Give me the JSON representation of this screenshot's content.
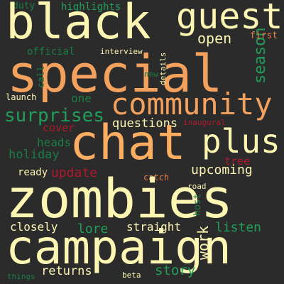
{
  "colors": {
    "background": "#2b2b2b",
    "cream": "#fdf6b3",
    "peach": "#fdae61",
    "orange": "#f4a15d",
    "green": "#1f9e5a",
    "dark_green": "#1a7d45",
    "red": "#b2182b"
  },
  "words": [
    {
      "id": "duty",
      "text": "duty",
      "color": "#1a7d45"
    },
    {
      "id": "highlights",
      "text": "highlights",
      "color": "#1f9e5a"
    },
    {
      "id": "black",
      "text": "black",
      "color": "#fdf6b3"
    },
    {
      "id": "guest",
      "text": "guest",
      "color": "#fdf6b3"
    },
    {
      "id": "season",
      "text": "season",
      "color": "#1f9e5a"
    },
    {
      "id": "first",
      "text": "first",
      "color": "#e8804a"
    },
    {
      "id": "open",
      "text": "open",
      "color": "#fdf6b3"
    },
    {
      "id": "official",
      "text": "official",
      "color": "#1a7d45"
    },
    {
      "id": "interview",
      "text": "interview",
      "color": "#fdf6b3"
    },
    {
      "id": "special",
      "text": "special",
      "color": "#f4a15d"
    },
    {
      "id": "call",
      "text": "call",
      "color": "#1a7d45"
    },
    {
      "id": "new",
      "text": "new",
      "color": "#1a7d45"
    },
    {
      "id": "details",
      "text": "details",
      "color": "#fdf6b3"
    },
    {
      "id": "launch",
      "text": "launch",
      "color": "#fdf6b3"
    },
    {
      "id": "one",
      "text": "one",
      "color": "#1a7d45"
    },
    {
      "id": "community",
      "text": "community",
      "color": "#f4a15d"
    },
    {
      "id": "surprises",
      "text": "surprises",
      "color": "#1f9e5a"
    },
    {
      "id": "questions",
      "text": "questions",
      "color": "#fdf6b3"
    },
    {
      "id": "inaugural",
      "text": "inaugural",
      "color": "#b2182b"
    },
    {
      "id": "cover",
      "text": "cover",
      "color": "#b2182b"
    },
    {
      "id": "chat",
      "text": "chat",
      "color": "#fdae61"
    },
    {
      "id": "plus",
      "text": "plus",
      "color": "#fdf6b3"
    },
    {
      "id": "heads",
      "text": "heads",
      "color": "#1a7d45"
    },
    {
      "id": "holiday",
      "text": "holiday",
      "color": "#1a7d45"
    },
    {
      "id": "tree",
      "text": "tree",
      "color": "#b2182b"
    },
    {
      "id": "ready",
      "text": "ready",
      "color": "#fdf6b3"
    },
    {
      "id": "update",
      "text": "update",
      "color": "#b2182b"
    },
    {
      "id": "upcoming",
      "text": "upcoming",
      "color": "#fdf6b3"
    },
    {
      "id": "catch",
      "text": "catch",
      "color": "#e8804a"
    },
    {
      "id": "road",
      "text": "road",
      "color": "#fdf6b3"
    },
    {
      "id": "zombies",
      "text": "zombies",
      "color": "#fdf6b3"
    },
    {
      "id": "host",
      "text": "host",
      "color": "#1a7d45"
    },
    {
      "id": "closely",
      "text": "closely",
      "color": "#fdf6b3"
    },
    {
      "id": "lore",
      "text": "lore",
      "color": "#1f9e5a"
    },
    {
      "id": "straight",
      "text": "straight",
      "color": "#fdf6b3"
    },
    {
      "id": "work",
      "text": "work",
      "color": "#fdf6b3"
    },
    {
      "id": "listen",
      "text": "listen",
      "color": "#1f9e5a"
    },
    {
      "id": "campaign",
      "text": "campaign",
      "color": "#fdf6b3"
    },
    {
      "id": "returns",
      "text": "returns",
      "color": "#fdf6b3"
    },
    {
      "id": "story",
      "text": "story",
      "color": "#1f9e5a"
    },
    {
      "id": "things",
      "text": "things",
      "color": "#1a7d45"
    },
    {
      "id": "beta",
      "text": "beta",
      "color": "#fdf6b3"
    }
  ]
}
